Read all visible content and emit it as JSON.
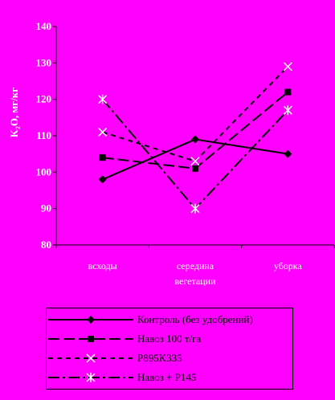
{
  "chart_data": {
    "type": "line",
    "ylabel": "K₂O, мг/кг",
    "xlabel": "",
    "ylim": [
      80,
      140
    ],
    "yticks": [
      80,
      90,
      100,
      110,
      120,
      130,
      140
    ],
    "categories": [
      "всходы",
      "середина вегетации",
      "уборка"
    ],
    "grid": false,
    "legend_position": "bottom",
    "series": [
      {
        "name": "Контроль (без удобрений)",
        "values": [
          98,
          109,
          105
        ],
        "color": "#000000",
        "dash": "solid",
        "marker": "diamond"
      },
      {
        "name": "Навоз 100 т/га",
        "values": [
          104,
          101,
          122
        ],
        "color": "#000000",
        "dash": "longdash",
        "marker": "square"
      },
      {
        "name": "P895K335",
        "values": [
          111,
          103,
          129
        ],
        "color": "#000000",
        "dash": "dash",
        "marker": "x"
      },
      {
        "name": "Навоз + P145",
        "values": [
          120,
          90,
          117
        ],
        "color": "#000000",
        "dash": "dashdot",
        "marker": "star"
      }
    ]
  }
}
